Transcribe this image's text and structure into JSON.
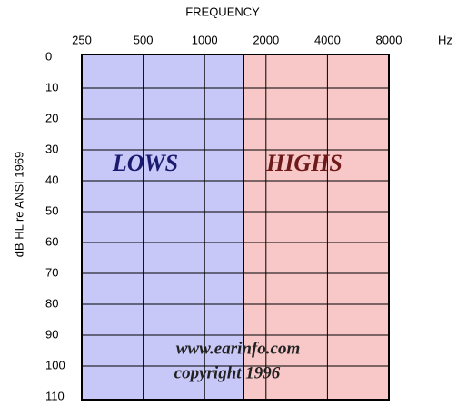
{
  "title": "FREQUENCY",
  "x_ticks": [
    "250",
    "500",
    "1000",
    "2000",
    "4000",
    "8000"
  ],
  "x_unit": "Hz",
  "y_label": "dB HL re ANSI 1969",
  "y_ticks": [
    "0",
    "10",
    "20",
    "30",
    "40",
    "50",
    "60",
    "70",
    "80",
    "90",
    "100",
    "110"
  ],
  "regions": [
    "LOWS",
    "HIGHS"
  ],
  "watermark": [
    "www.earinfo.com",
    "copyright 1996"
  ]
}
